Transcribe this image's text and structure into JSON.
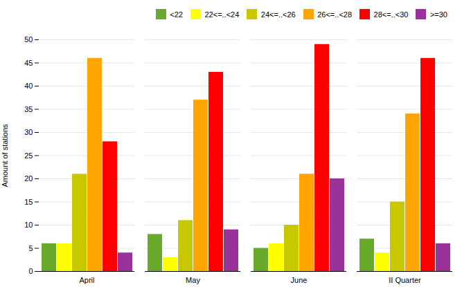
{
  "chart_data": {
    "type": "bar",
    "categories": [
      "April",
      "May",
      "June",
      "II Quarter"
    ],
    "series": [
      {
        "name": "<22",
        "color": "#6aaa2a",
        "values": [
          6,
          8,
          5,
          7
        ]
      },
      {
        "name": "22<=..<24",
        "color": "#ffff00",
        "values": [
          6,
          3,
          6,
          4
        ]
      },
      {
        "name": "24<=..<26",
        "color": "#c8c800",
        "values": [
          21,
          11,
          10,
          15
        ]
      },
      {
        "name": "26<=..<28",
        "color": "#ffa500",
        "values": [
          46,
          37,
          21,
          34
        ]
      },
      {
        "name": "28<=..<30",
        "color": "#ff0000",
        "values": [
          28,
          43,
          49,
          46
        ]
      },
      {
        "name": ">=30",
        "color": "#993399",
        "values": [
          4,
          9,
          20,
          6
        ]
      }
    ],
    "ylabel": "Amount of stations",
    "ylim": [
      0,
      50
    ],
    "yticks": [
      0,
      5,
      10,
      15,
      20,
      25,
      30,
      35,
      40,
      45,
      50
    ],
    "grid": true,
    "legend": "top-right"
  }
}
